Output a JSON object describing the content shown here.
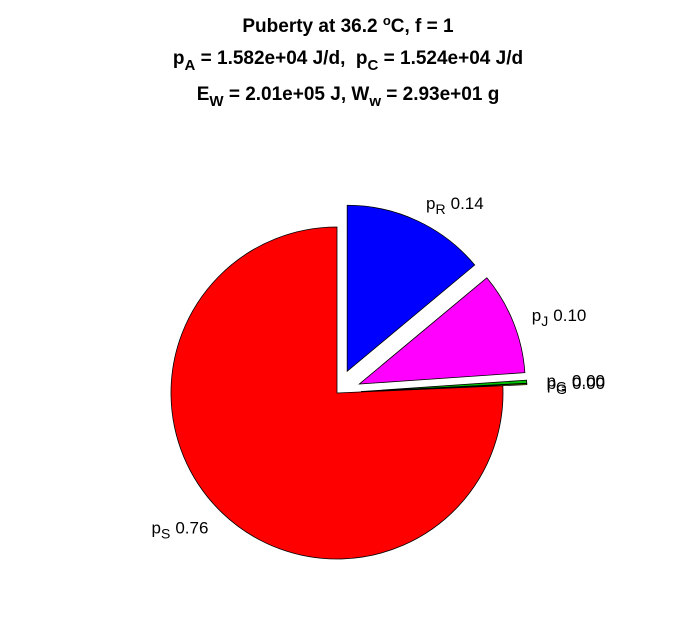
{
  "chart_data": {
    "type": "pie",
    "title": [
      [
        "Puberty at 36.2 ",
        "o",
        "C, f = 1"
      ],
      [
        "p",
        "A",
        " = 1.582e+04 J/d,  p",
        "C",
        " = 1.524e+04 J/d"
      ],
      [
        "E",
        "W",
        " = 2.01e+05 J, W",
        "w",
        " = 2.93e+01 g"
      ]
    ],
    "label_prefix": "p",
    "categories": [
      "R",
      "J",
      "G",
      "G",
      "S"
    ],
    "values": [
      0.14,
      0.1,
      0.003,
      0.001,
      0.76
    ],
    "value_labels": [
      "0.14",
      "0.10",
      "0.00",
      "0.00",
      "0.76"
    ],
    "colors": [
      "#0000ff",
      "#ff00ff",
      "#00c000",
      "#ffff00",
      "#ff0000"
    ],
    "explode": [
      true,
      true,
      true,
      true,
      false
    ]
  }
}
